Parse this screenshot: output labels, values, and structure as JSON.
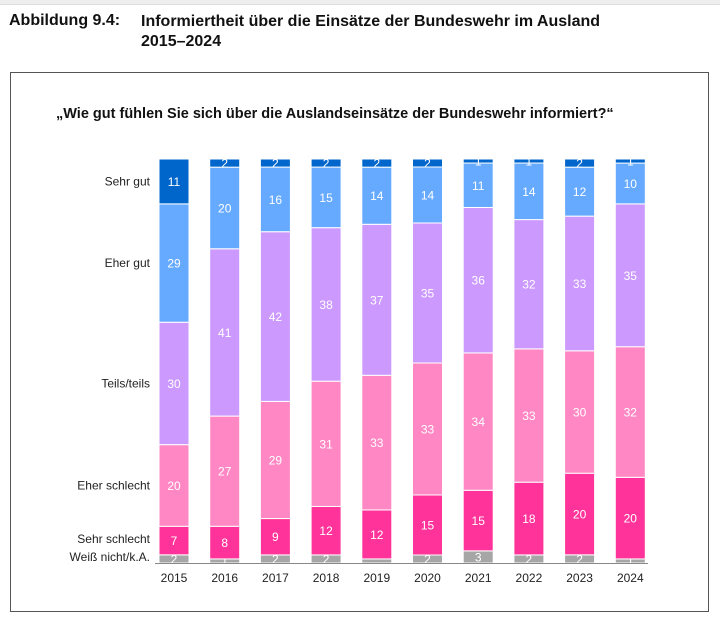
{
  "figure_number": "Abbildung 9.4:",
  "figure_title": "Informiertheit über die Einsätze der Bundeswehr im Ausland",
  "figure_title_line2": "2015–2024",
  "chart_data": {
    "type": "bar",
    "stacked": true,
    "title": "„Wie gut fühlen Sie sich über die Auslandseinsätze der Bundeswehr informiert?“",
    "categories": [
      "2015",
      "2016",
      "2017",
      "2018",
      "2019",
      "2020",
      "2021",
      "2022",
      "2023",
      "2024"
    ],
    "series": [
      {
        "name": "Weiß nicht/k.A.",
        "color": "#A6A6A6",
        "values": [
          2,
          1,
          2,
          2,
          1,
          2,
          3,
          2,
          2,
          1
        ],
        "labels_shown": [
          true,
          true,
          true,
          true,
          false,
          true,
          true,
          true,
          true,
          true
        ]
      },
      {
        "name": "Sehr schlecht",
        "color": "#FF3399",
        "values": [
          7,
          8,
          9,
          12,
          12,
          15,
          15,
          18,
          20,
          20
        ]
      },
      {
        "name": "Eher schlecht",
        "color": "#FF88C4",
        "values": [
          20,
          27,
          29,
          31,
          33,
          33,
          34,
          33,
          30,
          32
        ]
      },
      {
        "name": "Teils/teils",
        "color": "#CC99FF",
        "values": [
          30,
          41,
          42,
          38,
          37,
          35,
          36,
          32,
          33,
          35
        ]
      },
      {
        "name": "Eher gut",
        "color": "#66AAFF",
        "values": [
          29,
          20,
          16,
          15,
          14,
          14,
          11,
          14,
          12,
          10
        ]
      },
      {
        "name": "Sehr gut",
        "color": "#0066CC",
        "values": [
          11,
          2,
          2,
          2,
          2,
          2,
          1,
          1,
          2,
          1
        ]
      }
    ],
    "unit": "percent",
    "legend_placement": "left (category labels beside first bar)",
    "grid": false
  }
}
